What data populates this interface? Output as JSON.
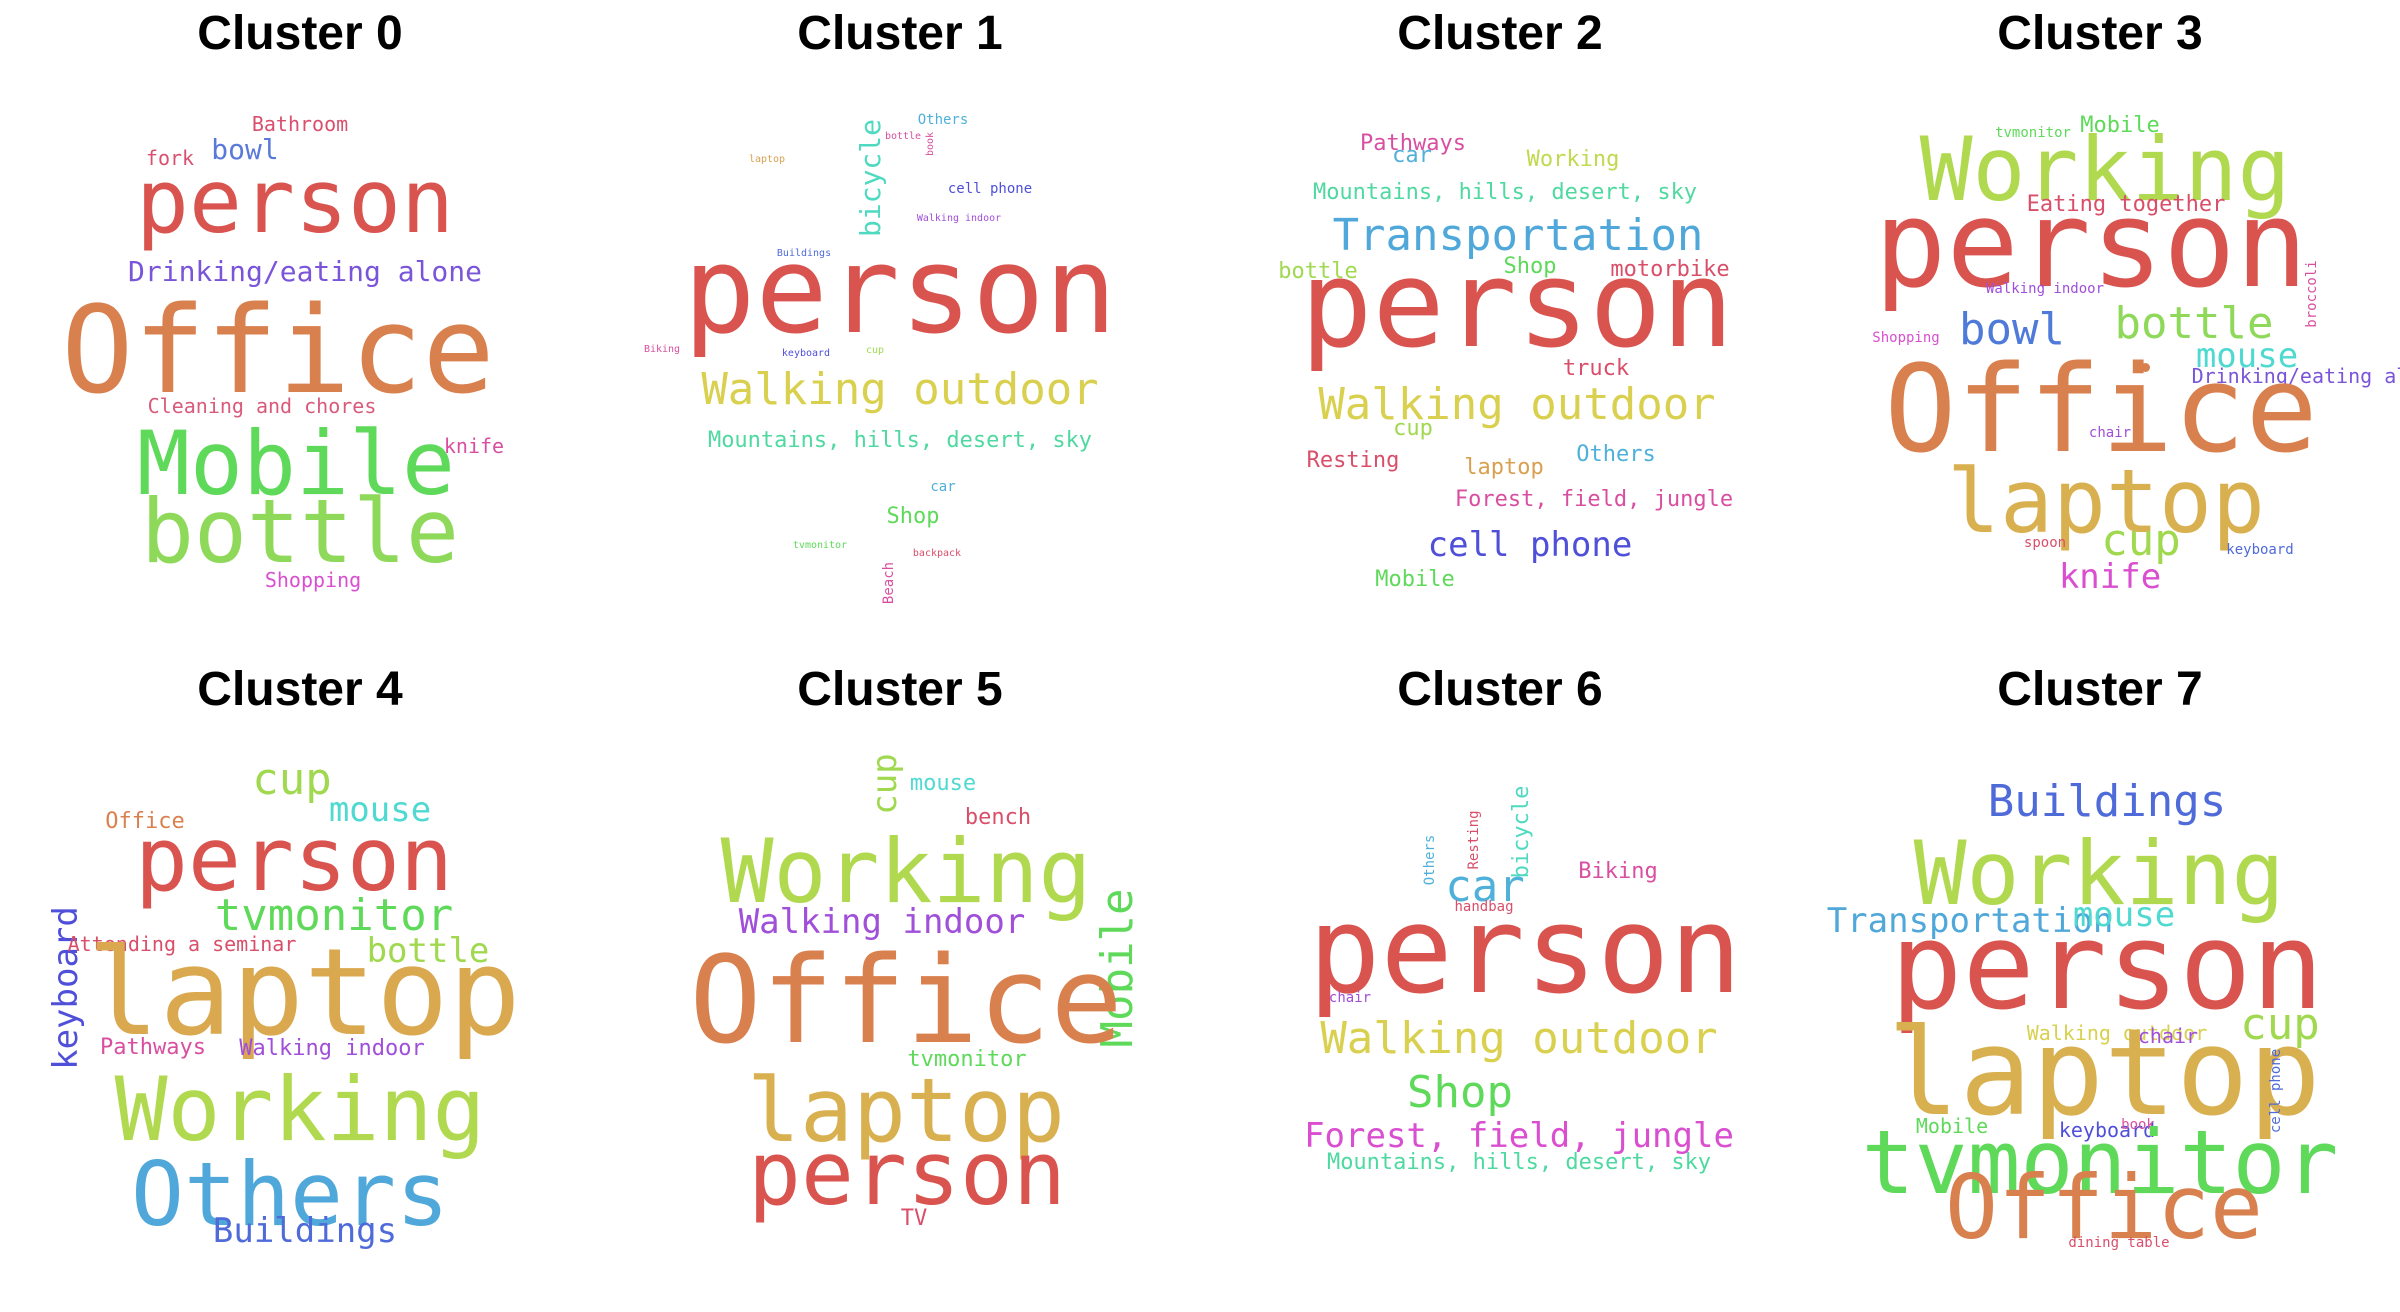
{
  "clusters": [
    {
      "title": "Cluster 0",
      "words": [
        {
          "text": "Bathroom",
          "size": "s",
          "color": "#d9506e"
        },
        {
          "text": "bowl",
          "size": "m",
          "color": "#5a7ad9"
        },
        {
          "text": "fork",
          "size": "s",
          "color": "#d9506e"
        },
        {
          "text": "person",
          "size": "xl",
          "color": "#d9534f"
        },
        {
          "text": "Drinking/eating alone",
          "size": "m",
          "color": "#7a55d9"
        },
        {
          "text": "Office",
          "size": "xxl",
          "color": "#d9804f"
        },
        {
          "text": "Cleaning and chores",
          "size": "s",
          "color": "#d95a7a"
        },
        {
          "text": "knife",
          "size": "s",
          "color": "#d94fa0"
        },
        {
          "text": "Mobile",
          "size": "xl",
          "color": "#5ed95a"
        },
        {
          "text": "bottle",
          "size": "xl",
          "color": "#8fd95a"
        },
        {
          "text": "Shopping",
          "size": "s",
          "color": "#d94fd0"
        }
      ]
    },
    {
      "title": "Cluster 1",
      "words": [
        {
          "text": "Others",
          "size": "xs",
          "color": "#4fb0d9"
        },
        {
          "text": "bicycle",
          "size": "m",
          "color": "#4fd9c0",
          "vertical": true
        },
        {
          "text": "bottle",
          "size": "xxs",
          "color": "#d94fa0"
        },
        {
          "text": "book",
          "size": "xxs",
          "color": "#d94fa0",
          "vertical": true
        },
        {
          "text": "laptop",
          "size": "xxs",
          "color": "#d9a04f"
        },
        {
          "text": "cell phone",
          "size": "xs",
          "color": "#4f4fd9"
        },
        {
          "text": "Walking indoor",
          "size": "xxs",
          "color": "#a04fd9"
        },
        {
          "text": "Buildings",
          "size": "xxs",
          "color": "#4f6ad9"
        },
        {
          "text": "person",
          "size": "xxl",
          "color": "#d9534f"
        },
        {
          "text": "Biking",
          "size": "xxs",
          "color": "#d94fa0"
        },
        {
          "text": "keyboard",
          "size": "xxs",
          "color": "#4f4fd9"
        },
        {
          "text": "cup",
          "size": "xxs",
          "color": "#a0d94f"
        },
        {
          "text": "Walking outdoor",
          "size": "l",
          "color": "#d9d04f"
        },
        {
          "text": "Mountains, hills, desert, sky",
          "size": "ms",
          "color": "#4fd9a0"
        },
        {
          "text": "car",
          "size": "xs",
          "color": "#4fb0d9"
        },
        {
          "text": "Shop",
          "size": "ms",
          "color": "#5ed95a"
        },
        {
          "text": "tvmonitor",
          "size": "xxs",
          "color": "#5ed95a"
        },
        {
          "text": "backpack",
          "size": "xxs",
          "color": "#d94f6a"
        },
        {
          "text": "Beach",
          "size": "xs",
          "color": "#d94fa0",
          "vertical": true
        }
      ]
    },
    {
      "title": "Cluster 2",
      "words": [
        {
          "text": "Pathways",
          "size": "ms",
          "color": "#d94fa0"
        },
        {
          "text": "car",
          "size": "ms",
          "color": "#4fb0d9"
        },
        {
          "text": "Working",
          "size": "ms",
          "color": "#c0d94f"
        },
        {
          "text": "Mountains, hills, desert, sky",
          "size": "ms",
          "color": "#4fd9a0"
        },
        {
          "text": "Transportation",
          "size": "l",
          "color": "#4fa8d9"
        },
        {
          "text": "bottle",
          "size": "ms",
          "color": "#a0d94f"
        },
        {
          "text": "Shop",
          "size": "ms",
          "color": "#5ed95a"
        },
        {
          "text": "motorbike",
          "size": "ms",
          "color": "#d94f6a"
        },
        {
          "text": "person",
          "size": "xxl",
          "color": "#d9534f"
        },
        {
          "text": "truck",
          "size": "ms",
          "color": "#d94f6a"
        },
        {
          "text": "Walking outdoor",
          "size": "l",
          "color": "#d9d04f"
        },
        {
          "text": "cup",
          "size": "ms",
          "color": "#a0d94f"
        },
        {
          "text": "Resting",
          "size": "ms",
          "color": "#d94f6a"
        },
        {
          "text": "laptop",
          "size": "ms",
          "color": "#d9a04f"
        },
        {
          "text": "Others",
          "size": "ms",
          "color": "#4fb0d9"
        },
        {
          "text": "Forest, field, jungle",
          "size": "ms",
          "color": "#d94fa0"
        },
        {
          "text": "cell phone",
          "size": "lm",
          "color": "#4f4fd9"
        },
        {
          "text": "Mobile",
          "size": "ms",
          "color": "#5ed95a"
        }
      ]
    },
    {
      "title": "Cluster 3",
      "words": [
        {
          "text": "tvmonitor",
          "size": "xs",
          "color": "#5ed95a"
        },
        {
          "text": "Mobile",
          "size": "ms",
          "color": "#5ed95a"
        },
        {
          "text": "Working",
          "size": "xl",
          "color": "#b0d94f"
        },
        {
          "text": "Eating together",
          "size": "ms",
          "color": "#d94f6a"
        },
        {
          "text": "person",
          "size": "xxl",
          "color": "#d9534f"
        },
        {
          "text": "Walking indoor",
          "size": "xs",
          "color": "#a04fd9"
        },
        {
          "text": "bowl",
          "size": "l",
          "color": "#4f7ad9"
        },
        {
          "text": "bottle",
          "size": "l",
          "color": "#8fd95a"
        },
        {
          "text": "broccoli",
          "size": "xs",
          "color": "#d94fa0",
          "vertical": true
        },
        {
          "text": "Shopping",
          "size": "xs",
          "color": "#d94fd0"
        },
        {
          "text": "mouse",
          "size": "lm",
          "color": "#4fd9d0"
        },
        {
          "text": "Drinking/eating alone",
          "size": "s",
          "color": "#7a55d9"
        },
        {
          "text": "Office",
          "size": "xxl",
          "color": "#d9804f"
        },
        {
          "text": "chair",
          "size": "xs",
          "color": "#a04fd9"
        },
        {
          "text": "laptop",
          "size": "xl",
          "color": "#d9b04f"
        },
        {
          "text": "spoon",
          "size": "xs",
          "color": "#d94f6a"
        },
        {
          "text": "cup",
          "size": "l",
          "color": "#a0d94f"
        },
        {
          "text": "keyboard",
          "size": "xs",
          "color": "#4f6ad9"
        },
        {
          "text": "knife",
          "size": "lm",
          "color": "#d94fd0"
        }
      ]
    },
    {
      "title": "Cluster 4",
      "words": [
        {
          "text": "cup",
          "size": "l",
          "color": "#a0d94f"
        },
        {
          "text": "Office",
          "size": "ms",
          "color": "#d9804f"
        },
        {
          "text": "mouse",
          "size": "lm",
          "color": "#4fd9d0"
        },
        {
          "text": "person",
          "size": "xl",
          "color": "#d9534f"
        },
        {
          "text": "tvmonitor",
          "size": "l",
          "color": "#5ed95a"
        },
        {
          "text": "keyboard",
          "size": "lm",
          "color": "#4f4fd9",
          "vertical": true
        },
        {
          "text": "Attending a seminar",
          "size": "s",
          "color": "#d94f6a"
        },
        {
          "text": "bottle",
          "size": "lm",
          "color": "#a0d94f"
        },
        {
          "text": "laptop",
          "size": "xxl",
          "color": "#d9a84f"
        },
        {
          "text": "Pathways",
          "size": "ms",
          "color": "#d94fa0"
        },
        {
          "text": "Walking indoor",
          "size": "ms",
          "color": "#a04fd9"
        },
        {
          "text": "Working",
          "size": "xl",
          "color": "#b0d94f"
        },
        {
          "text": "Others",
          "size": "xl",
          "color": "#4fa8d9"
        },
        {
          "text": "Buildings",
          "size": "lm",
          "color": "#4f6ad9"
        }
      ]
    },
    {
      "title": "Cluster 5",
      "words": [
        {
          "text": "cup",
          "size": "lm",
          "color": "#a0d94f",
          "vertical": true
        },
        {
          "text": "mouse",
          "size": "ms",
          "color": "#4fd9d0"
        },
        {
          "text": "bench",
          "size": "ms",
          "color": "#d94f6a"
        },
        {
          "text": "Working",
          "size": "xl",
          "color": "#b0d94f"
        },
        {
          "text": "Walking indoor",
          "size": "lm",
          "color": "#a04fd9"
        },
        {
          "text": "Mobile",
          "size": "l",
          "color": "#5ed95a",
          "vertical": true
        },
        {
          "text": "Office",
          "size": "xxl",
          "color": "#d9804f"
        },
        {
          "text": "tvmonitor",
          "size": "ms",
          "color": "#5ed95a"
        },
        {
          "text": "laptop",
          "size": "xl",
          "color": "#d9b04f"
        },
        {
          "text": "person",
          "size": "xl",
          "color": "#d9534f"
        },
        {
          "text": "TV",
          "size": "ms",
          "color": "#d94f6a"
        }
      ]
    },
    {
      "title": "Cluster 6",
      "words": [
        {
          "text": "Others",
          "size": "xs",
          "color": "#4fb0d9",
          "vertical": true
        },
        {
          "text": "Resting",
          "size": "xs",
          "color": "#d94f6a",
          "vertical": true
        },
        {
          "text": "bicycle",
          "size": "ms",
          "color": "#4fd9c0",
          "vertical": true
        },
        {
          "text": "car",
          "size": "l",
          "color": "#4fb0d9"
        },
        {
          "text": "Biking",
          "size": "ms",
          "color": "#d94fa0"
        },
        {
          "text": "handbag",
          "size": "xs",
          "color": "#d94f6a"
        },
        {
          "text": "person",
          "size": "xxl",
          "color": "#d9534f"
        },
        {
          "text": "chair",
          "size": "xs",
          "color": "#a04fd9"
        },
        {
          "text": "Walking outdoor",
          "size": "l",
          "color": "#d9d04f"
        },
        {
          "text": "Shop",
          "size": "l",
          "color": "#5ed95a"
        },
        {
          "text": "Forest, field, jungle",
          "size": "lm",
          "color": "#d94fd0"
        },
        {
          "text": "Mountains, hills, desert, sky",
          "size": "ms",
          "color": "#4fd9a0"
        }
      ]
    },
    {
      "title": "Cluster 7",
      "words": [
        {
          "text": "Buildings",
          "size": "l",
          "color": "#4f6ad9"
        },
        {
          "text": "Working",
          "size": "xl",
          "color": "#b0d94f"
        },
        {
          "text": "Transportation",
          "size": "lm",
          "color": "#4fa8d9"
        },
        {
          "text": "mouse",
          "size": "lm",
          "color": "#4fd9d0"
        },
        {
          "text": "person",
          "size": "xxl",
          "color": "#d9534f"
        },
        {
          "text": "cup",
          "size": "l",
          "color": "#a0d94f"
        },
        {
          "text": "Walking outdoor",
          "size": "s",
          "color": "#d9d04f"
        },
        {
          "text": "chair",
          "size": "s",
          "color": "#a04fd9"
        },
        {
          "text": "laptop",
          "size": "xxl",
          "color": "#d9b04f"
        },
        {
          "text": "cell phone",
          "size": "xs",
          "color": "#4f6ad9",
          "vertical": true
        },
        {
          "text": "Mobile",
          "size": "s",
          "color": "#5ed95a"
        },
        {
          "text": "keyboard",
          "size": "s",
          "color": "#4f4fd9"
        },
        {
          "text": "book",
          "size": "xs",
          "color": "#d94fa0"
        },
        {
          "text": "tvmonitor",
          "size": "xl",
          "color": "#5ed95a"
        },
        {
          "text": "Office",
          "size": "xl",
          "color": "#d9804f"
        },
        {
          "text": "dining table",
          "size": "xs",
          "color": "#d94f6a"
        }
      ]
    }
  ]
}
